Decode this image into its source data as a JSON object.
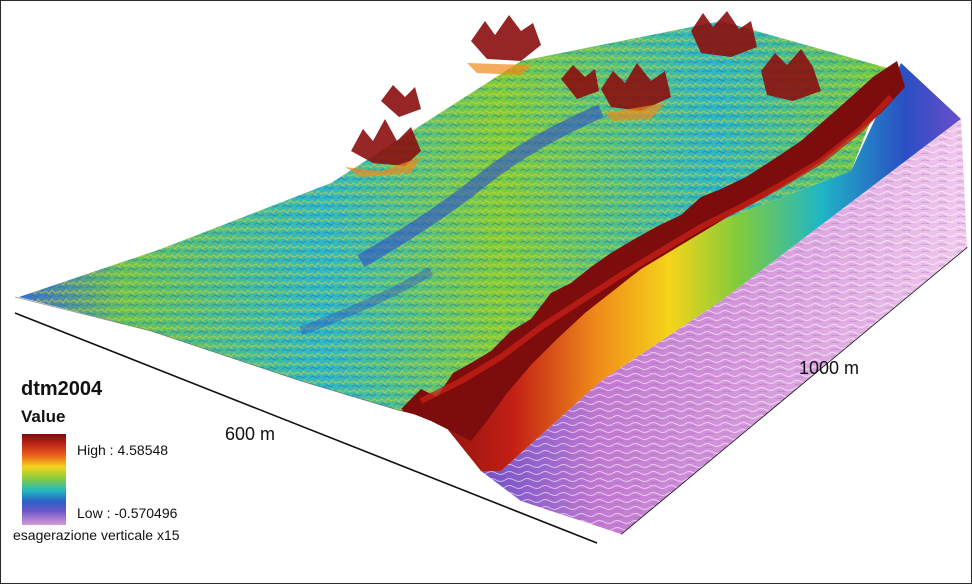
{
  "legend": {
    "title": "dtm2004",
    "value_label": "Value",
    "high_label": "High : 4.58548",
    "low_label": "Low : -0.570496",
    "note": "esagerazione verticale x15",
    "ramp_colors": [
      "#7a0d0d",
      "#b41e16",
      "#e8551c",
      "#f6d21b",
      "#8fcf3a",
      "#24b9c0",
      "#2a62c6",
      "#6f56c9",
      "#d79ad6"
    ]
  },
  "dimensions": {
    "width_label": "600 m",
    "length_label": "1000 m"
  },
  "colors": {
    "land_high": "#8b0f0e",
    "land_mid": "#7fcc40",
    "land_low": "#2f6fd0",
    "sea": "#d49ad2",
    "frame": "#2a2a2a"
  }
}
